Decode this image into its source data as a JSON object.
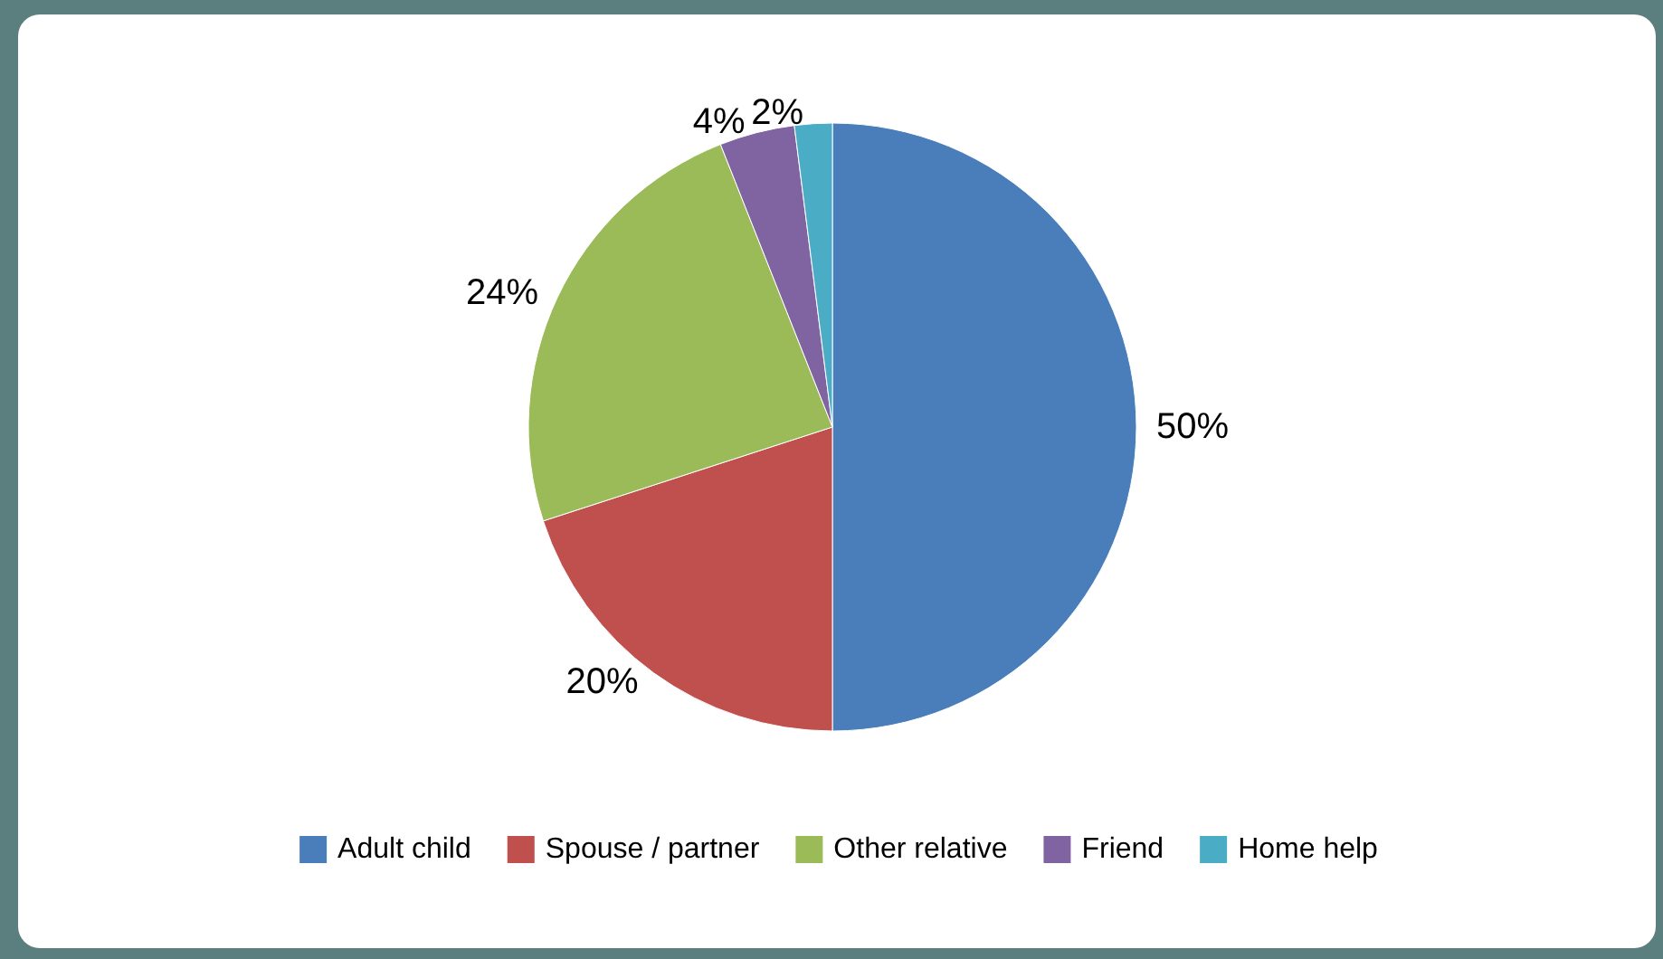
{
  "chart_data": {
    "type": "pie",
    "categories": [
      "Adult child",
      "Spouse / partner",
      "Other relative",
      "Friend",
      "Home help"
    ],
    "values": [
      50,
      20,
      24,
      4,
      2
    ],
    "colors": [
      "#4a7ebb",
      "#c0504d",
      "#9bbb59",
      "#8064a2",
      "#4bacc6"
    ],
    "value_labels": [
      "50%",
      "20%",
      "24%",
      "4%",
      "2%"
    ],
    "legend": "bottom"
  }
}
